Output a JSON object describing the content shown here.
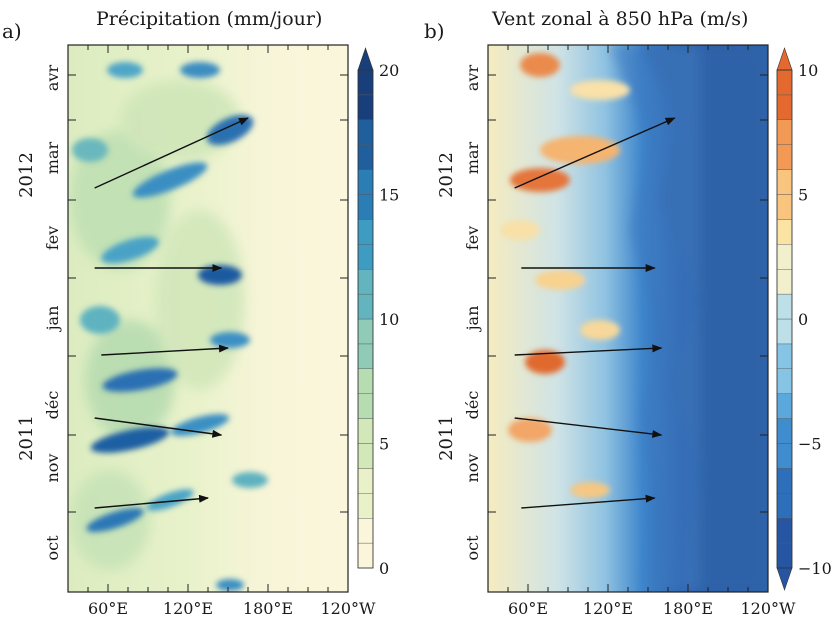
{
  "chart_data": [
    {
      "panel_label": "a)",
      "title": "Précipitation (mm/jour)",
      "type": "heatmap",
      "x_tick_labels": [
        "60°E",
        "120°E",
        "180°E",
        "120°W"
      ],
      "month_labels": [
        "oct",
        "nov",
        "déc",
        "jan",
        "fev",
        "mar",
        "avr"
      ],
      "year_labels": [
        "2011",
        "2012"
      ],
      "colorbar": {
        "ticks": [
          "0",
          "5",
          "10",
          "15",
          "20"
        ],
        "range": [
          0,
          20
        ],
        "step": 1,
        "colors": [
          "#fbf6db",
          "#e8f1c7",
          "#d3e8b8",
          "#b6dcb2",
          "#8fcbb6",
          "#62b5be",
          "#3e9cc3",
          "#2a7db5",
          "#1f5f9e",
          "#183f7b"
        ],
        "extend": "max"
      },
      "arrows": [
        {
          "from": [
            "50°E",
            "oct"
          ],
          "to": [
            "135°E",
            "nov"
          ]
        },
        {
          "from": [
            "50°E",
            "nov"
          ],
          "to": [
            "145°E",
            "déc"
          ]
        },
        {
          "from": [
            "55°E",
            "déc"
          ],
          "to": [
            "150°E",
            "jan"
          ]
        },
        {
          "from": [
            "50°E",
            "jan"
          ],
          "to": [
            "145°E",
            "fev"
          ]
        },
        {
          "from": [
            "50°E",
            "fev"
          ],
          "to": [
            "165°E",
            "avr"
          ]
        }
      ]
    },
    {
      "panel_label": "b)",
      "title": "Vent zonal à 850 hPa (m/s)",
      "type": "heatmap",
      "x_tick_labels": [
        "60°E",
        "120°E",
        "180°E",
        "120°W"
      ],
      "month_labels": [
        "oct",
        "nov",
        "déc",
        "jan",
        "fev",
        "mar",
        "avr"
      ],
      "year_labels": [
        "2011",
        "2012"
      ],
      "colorbar": {
        "ticks": [
          "10",
          "5",
          "0",
          "−5",
          "−10"
        ],
        "range": [
          -10,
          10
        ],
        "step": 1,
        "colors_low_to_high": [
          "#2656a3",
          "#2e6fbc",
          "#3f8ccf",
          "#5aa8dc",
          "#86c4e5",
          "#bddfe8",
          "#f2f0cc",
          "#fbe3a4",
          "#f9c47d",
          "#f29a55",
          "#e4692f"
        ],
        "extend": "both"
      },
      "arrows": [
        {
          "from": [
            "55°E",
            "oct"
          ],
          "to": [
            "155°E",
            "nov"
          ]
        },
        {
          "from": [
            "50°E",
            "nov"
          ],
          "to": [
            "160°E",
            "déc"
          ]
        },
        {
          "from": [
            "50°E",
            "déc"
          ],
          "to": [
            "160°E",
            "jan"
          ]
        },
        {
          "from": [
            "55°E",
            "jan"
          ],
          "to": [
            "155°E",
            "fev"
          ]
        },
        {
          "from": [
            "50°E",
            "fev"
          ],
          "to": [
            "170°E",
            "avr"
          ]
        }
      ]
    }
  ]
}
